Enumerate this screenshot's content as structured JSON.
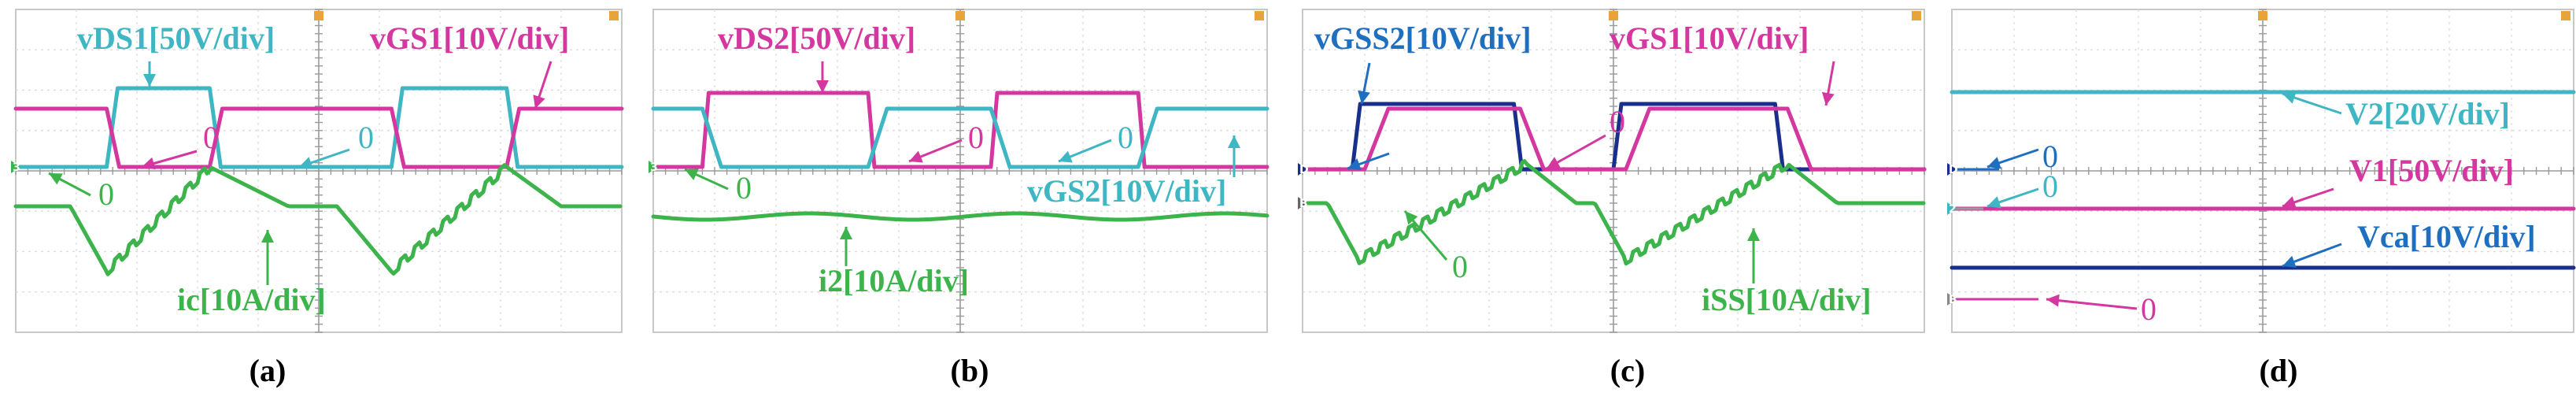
{
  "figure": {
    "captions": [
      "(a)",
      "(b)",
      "(c)",
      "(d)"
    ]
  },
  "colors": {
    "cyan": "#3fb6c3",
    "magenta": "#d4379f",
    "green": "#3cb44b",
    "blue": "#1f6fc1",
    "navy": "#1a2f8c",
    "orange": "#e8a33a"
  },
  "chart_data": [
    {
      "type": "line",
      "panel": "(a)",
      "grid": "oscilloscope 10x8 divisions",
      "series": [
        {
          "name": "vDS1[50V/div]",
          "color": "cyan",
          "shape": "square wave",
          "low_div": 0.0,
          "high_div": 1.0,
          "high_intervals": [
            [
              1.5,
              3.2
            ],
            [
              6.2,
              8.1
            ]
          ]
        },
        {
          "name": "vGS1[10V/div]",
          "color": "magenta",
          "shape": "square wave",
          "low_div": 0.0,
          "high_div": 0.7,
          "high_intervals": [
            [
              0.0,
              1.5
            ],
            [
              3.2,
              6.2
            ],
            [
              8.1,
              10.0
            ]
          ]
        },
        {
          "name": "ic[10A/div]",
          "color": "green",
          "shape": "triangular with ripple",
          "note": "peaks at switching instants"
        }
      ],
      "annotations": [
        "vDS1[50V/div]",
        "vGS1[10V/div]",
        "0",
        "0",
        "0",
        "ic[10A/div]"
      ]
    },
    {
      "type": "line",
      "panel": "(b)",
      "grid": "oscilloscope 10x8 divisions",
      "series": [
        {
          "name": "vDS2[50V/div]",
          "color": "magenta",
          "shape": "square wave",
          "high_intervals": [
            [
              0.8,
              3.5
            ],
            [
              5.5,
              7.9
            ]
          ]
        },
        {
          "name": "vGS2[10V/div]",
          "color": "cyan",
          "shape": "square wave",
          "high_intervals": [
            [
              0.0,
              0.8
            ],
            [
              3.5,
              5.5
            ],
            [
              7.9,
              10.0
            ]
          ]
        },
        {
          "name": "i2[10A/div]",
          "color": "green",
          "shape": "nearly constant with small ripple"
        }
      ],
      "annotations": [
        "vDS2[50V/div]",
        "0",
        "0",
        "0",
        "vGS2[10V/div]",
        "i2[10A/div]"
      ]
    },
    {
      "type": "line",
      "panel": "(c)",
      "grid": "oscilloscope 10x8 divisions",
      "series": [
        {
          "name": "vGSS2[10V/div]",
          "color": "blue",
          "shape": "square wave",
          "high_intervals": [
            [
              0.8,
              3.4
            ],
            [
              5.0,
              7.6
            ]
          ]
        },
        {
          "name": "vGS1[10V/div]",
          "color": "magenta",
          "shape": "square wave",
          "high_intervals": [
            [
              1.0,
              3.5
            ],
            [
              5.2,
              7.8
            ]
          ]
        },
        {
          "name": "iSS[10A/div]",
          "color": "green",
          "shape": "triangular with ripple"
        }
      ],
      "annotations": [
        "vGSS2[10V/div]",
        "vGS1[10V/div]",
        "0",
        "0",
        "iSS[10A/div]"
      ]
    },
    {
      "type": "line",
      "panel": "(d)",
      "grid": "oscilloscope 10x8 divisions",
      "series": [
        {
          "name": "V2[20V/div]",
          "color": "cyan",
          "shape": "DC"
        },
        {
          "name": "V1[50V/div]",
          "color": "magenta",
          "shape": "DC"
        },
        {
          "name": "Vca[10V/div]",
          "color": "navy",
          "shape": "DC"
        }
      ],
      "annotations": [
        "V2[20V/div]",
        "0",
        "0",
        "V1[50V/div]",
        "Vca[10V/div]",
        "0"
      ]
    }
  ]
}
